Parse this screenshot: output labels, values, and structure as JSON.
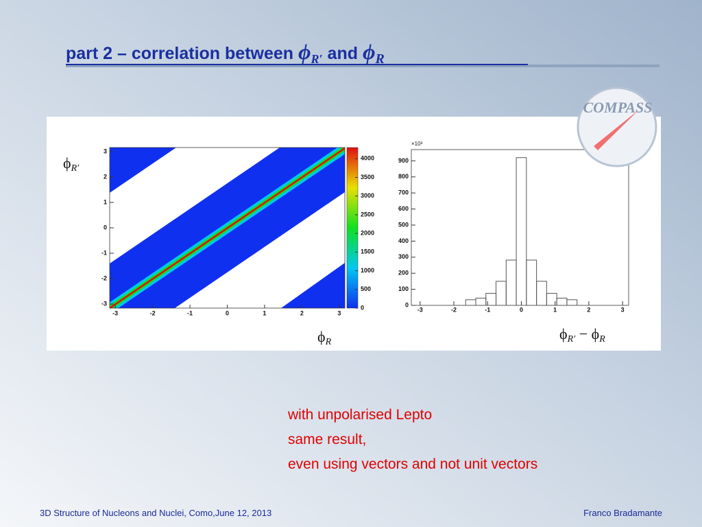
{
  "title": {
    "text": "part 2 – correlation between ",
    "phi1": "ϕ",
    "sub1": "R′",
    "and": " and ",
    "phi2": "ϕ",
    "sub2": "R"
  },
  "logo": "COMPASS",
  "chart_data": [
    {
      "type": "heatmap",
      "xlim": [
        -3.15,
        3.15
      ],
      "ylim": [
        -3.16,
        3.16
      ],
      "xticks": [
        -3,
        -2,
        -1,
        0,
        1,
        2,
        3
      ],
      "yticks": [
        -3,
        -2,
        -1,
        0,
        1,
        2,
        3
      ],
      "zlim": [
        0,
        4300
      ],
      "zticks": [
        0,
        500,
        1000,
        1500,
        2000,
        2500,
        3000,
        3500,
        4000
      ],
      "colormap": [
        "#1030f0",
        "#00c8f0",
        "#10e020",
        "#e8e000",
        "#e01010"
      ],
      "x_label": [
        "ϕ",
        "R"
      ],
      "y_label": [
        "ϕ",
        "R′"
      ]
    },
    {
      "type": "histogram",
      "xlim": [
        -3.26,
        3.18
      ],
      "ylim": [
        0,
        970
      ],
      "xticks": [
        -3,
        -2,
        -1,
        0,
        1,
        2,
        3
      ],
      "yticks": [
        0,
        100,
        200,
        300,
        400,
        500,
        600,
        700,
        800,
        900
      ],
      "y_multiplier": "×10³",
      "color": "#555555",
      "bins": [
        -1.65,
        -1.35,
        -1.05,
        -0.75,
        -0.45,
        -0.15,
        0.15,
        0.45,
        0.75,
        1.05,
        1.35,
        1.65
      ],
      "values": [
        35,
        45,
        75,
        150,
        282,
        920,
        282,
        150,
        75,
        45,
        35
      ],
      "x_label": [
        "ϕ",
        "R′",
        " − ",
        "ϕ",
        "R"
      ]
    }
  ],
  "notes": [
    "with unpolarised Lepto",
    "same result,",
    "even using vectors and not unit vectors"
  ],
  "footer": {
    "left": "3D Structure of Nucleons and Nuclei, Como,June 12, 2013",
    "right": "Franco Bradamante"
  }
}
